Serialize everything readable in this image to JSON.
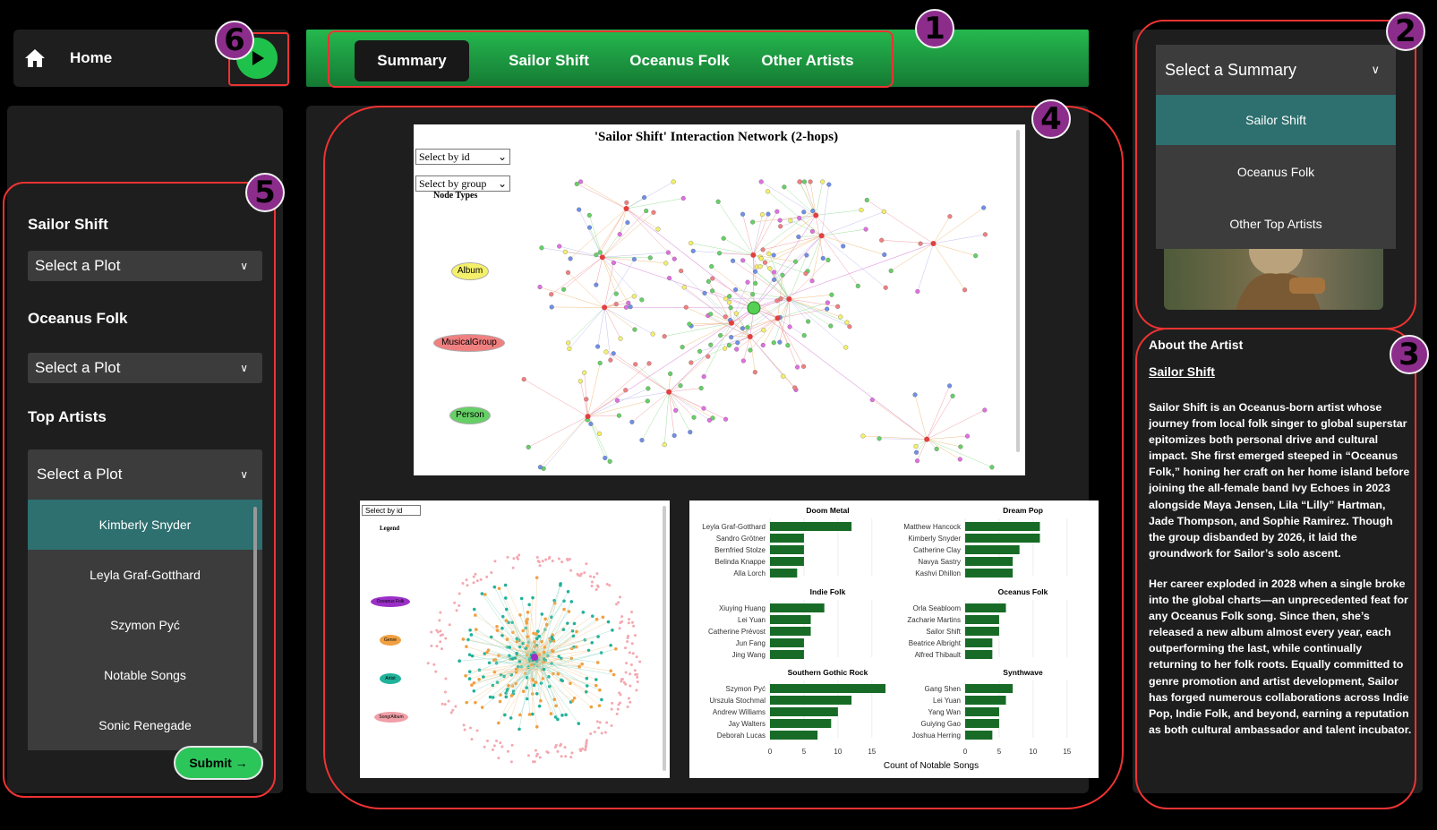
{
  "header": {
    "home_label": "Home"
  },
  "tabs": [
    {
      "label": "Summary",
      "active": true
    },
    {
      "label": "Sailor Shift"
    },
    {
      "label": "Oceanus Folk"
    },
    {
      "label": "Other Artists"
    }
  ],
  "badges": [
    "1",
    "2",
    "3",
    "4",
    "5",
    "6"
  ],
  "left_panel": {
    "sections": [
      {
        "title": "Sailor Shift",
        "placeholder": "Select a Plot"
      },
      {
        "title": "Oceanus Folk",
        "placeholder": "Select a Plot"
      },
      {
        "title": "Top Artists",
        "placeholder": "Select a Plot"
      }
    ],
    "top_artists_options": [
      "Kimberly Snyder",
      "Leyla Graf-Gotthard",
      "Szymon Pyć",
      "Notable Songs",
      "Sonic Renegade"
    ],
    "submit_label": "Submit"
  },
  "summary_select": {
    "placeholder": "Select a Summary",
    "options": [
      "Sailor Shift",
      "Oceanus Folk",
      "Other Top Artists"
    ]
  },
  "about": {
    "heading": "About the Artist",
    "artist_link": "Sailor Shift",
    "paragraphs": [
      "Sailor Shift is an Oceanus-born artist whose journey from local folk singer to global superstar epitomizes both personal drive and cultural impact. She first emerged steeped in “Oceanus Folk,” honing her craft on her home island before joining the all-female band Ivy Echoes in 2023 alongside Maya Jensen, Lila “Lilly” Hartman, Jade Thompson, and Sophie Ramirez. Though the group disbanded by 2026, it laid the groundwork for Sailor’s solo ascent.",
      "Her career exploded in 2028 when a single broke into the global charts—an unprecedented feat for any Oceanus Folk song. Since then, she’s released a new album almost every year, each outperforming the last, while continually returning to her folk roots. Equally committed to genre promotion and artist development, Sailor has forged numerous collaborations across Indie Pop, Indie Folk, and beyond, earning a reputation as both cultural ambassador and talent incubator."
    ]
  },
  "network": {
    "title": "'Sailor Shift' Interaction Network (2-hops)",
    "select_id": "Select by id",
    "select_group": "Select by group",
    "legend_title": "Node Types",
    "legend": [
      {
        "label": "Album",
        "color": "#f4f06a"
      },
      {
        "label": "MusicalGroup",
        "color": "#f08080"
      },
      {
        "label": "Person",
        "color": "#66d066"
      }
    ]
  },
  "network2": {
    "select_id": "Select by id",
    "legend_title": "Legend",
    "legend": [
      {
        "label": "Oceanus Folk",
        "color": "#9b30c8"
      },
      {
        "label": "Genre",
        "color": "#f0a040"
      },
      {
        "label": "Artist",
        "color": "#20b29a"
      },
      {
        "label": "Song/Album",
        "color": "#f0a0a8"
      }
    ]
  },
  "chart_data": {
    "type": "bar",
    "xlabel": "Count of Notable Songs",
    "xlim": [
      0,
      17
    ],
    "xticks": [
      0,
      5,
      10,
      15
    ],
    "bar_color": "#176b26",
    "panels": [
      {
        "title": "Doom Metal",
        "categories": [
          "Leyla Graf-Gotthard",
          "Sandro Grötner",
          "Bernfried Stolze",
          "Belinda Knappe",
          "Alla Lorch"
        ],
        "values": [
          12,
          5,
          5,
          5,
          4
        ]
      },
      {
        "title": "Dream Pop",
        "categories": [
          "Matthew Hancock",
          "Kimberly Snyder",
          "Catherine Clay",
          "Navya Sastry",
          "Kashvi Dhillon"
        ],
        "values": [
          11,
          11,
          8,
          7,
          7
        ]
      },
      {
        "title": "Indie Folk",
        "categories": [
          "Xiuying Huang",
          "Lei Yuan",
          "Catherine Prévost",
          "Jun Fang",
          "Jing Wang"
        ],
        "values": [
          8,
          6,
          6,
          5,
          5
        ]
      },
      {
        "title": "Oceanus Folk",
        "categories": [
          "Orla Seabloom",
          "Zacharie Martins",
          "Sailor Shift",
          "Beatrice Albright",
          "Alfred Thibault"
        ],
        "values": [
          6,
          5,
          5,
          4,
          4
        ]
      },
      {
        "title": "Southern Gothic Rock",
        "categories": [
          "Szymon Pyć",
          "Urszula Stochmal",
          "Andrew Williams",
          "Jay Walters",
          "Deborah Lucas"
        ],
        "values": [
          17,
          12,
          10,
          9,
          7
        ]
      },
      {
        "title": "Synthwave",
        "categories": [
          "Gang Shen",
          "Lei Yuan",
          "Yang Wan",
          "Guiying Gao",
          "Joshua Herring"
        ],
        "values": [
          7,
          6,
          5,
          5,
          4
        ]
      }
    ]
  }
}
